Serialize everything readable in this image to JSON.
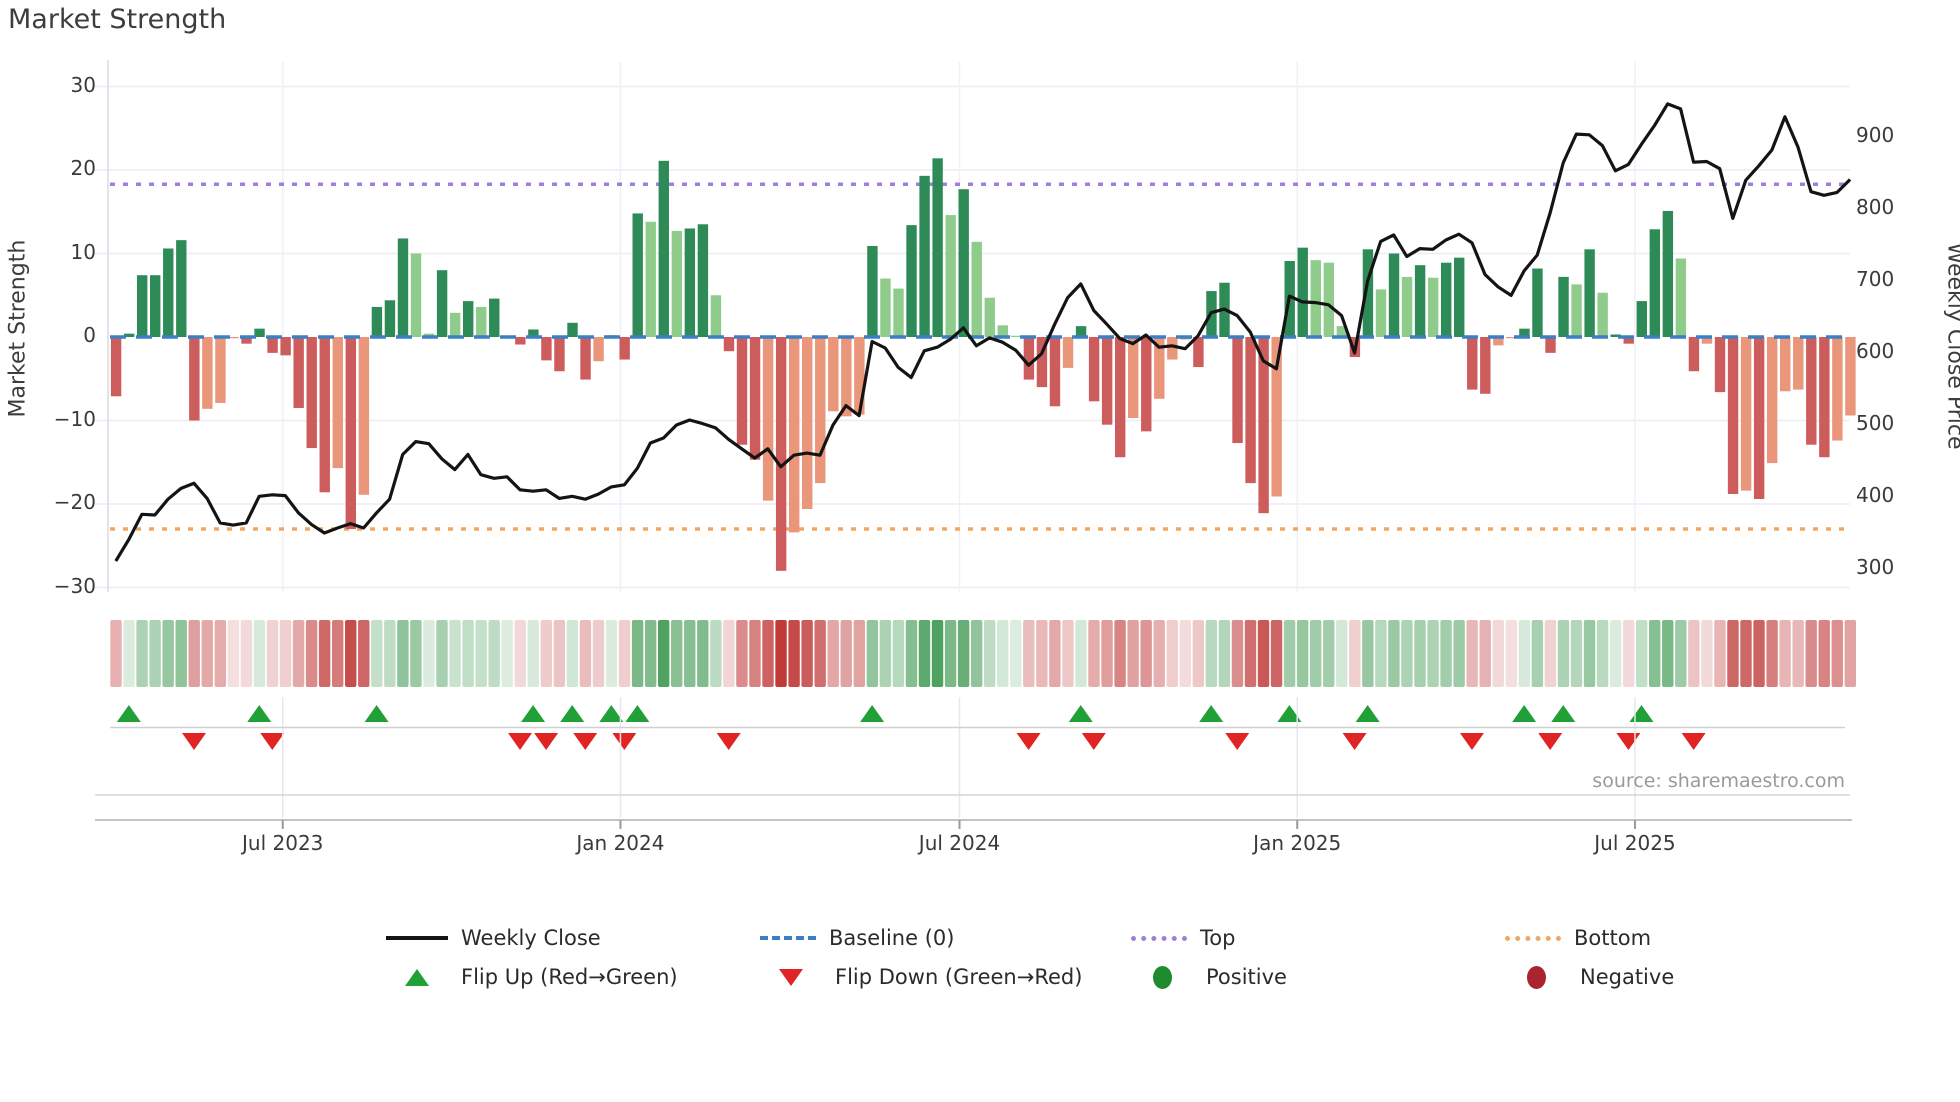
{
  "title": "Market Strength",
  "source": "source: sharemaestro.com",
  "y_left": {
    "label": "Market Strength",
    "ticks": [
      "30",
      "20",
      "10",
      "0",
      "−10",
      "−20",
      "−30"
    ],
    "tick_values": [
      30,
      20,
      10,
      0,
      -10,
      -20,
      -30
    ]
  },
  "y_right": {
    "label": "Weekly Close Price",
    "ticks": [
      "900",
      "800",
      "700",
      "600",
      "500",
      "400",
      "300"
    ],
    "tick_values": [
      900,
      800,
      700,
      600,
      500,
      400,
      300
    ]
  },
  "x_ticks": [
    {
      "label": "Jul 2023",
      "week": 12.8
    },
    {
      "label": "Jan 2024",
      "week": 38.7
    },
    {
      "label": "Jul 2024",
      "week": 64.7
    },
    {
      "label": "Jan 2025",
      "week": 90.6
    },
    {
      "label": "Jul 2025",
      "week": 116.5
    }
  ],
  "legend": {
    "weekly_close": "Weekly Close",
    "baseline": "Baseline (0)",
    "top": "Top",
    "bottom": "Bottom",
    "flip_up": "Flip Up (Red→Green)",
    "flip_down": "Flip Down (Green→Red)",
    "positive": "Positive",
    "negative": "Negative"
  },
  "chart_data": {
    "type": "bar",
    "title": "Market Strength",
    "ylabel_left": "Market Strength",
    "ylabel_right": "Weekly Close Price",
    "ylim_left": [
      -30,
      30
    ],
    "baseline": 0,
    "top_line": 18.3,
    "bottom_line": -23,
    "grid": true,
    "legend_position": "bottom",
    "weeks": 134,
    "series": [
      {
        "name": "Market Strength (weekly bars)",
        "type": "bar",
        "values": [
          -7.1,
          0.4,
          7.4,
          7.4,
          10.6,
          11.6,
          -10,
          -8.6,
          -7.9,
          -0.15,
          -0.8,
          1,
          -1.9,
          -2.2,
          -8.5,
          -13.3,
          -18.6,
          -15.7,
          -23,
          -18.9,
          3.6,
          4.4,
          11.8,
          10,
          0.4,
          8,
          2.9,
          4.3,
          3.6,
          4.6,
          0.15,
          -0.9,
          0.9,
          -2.8,
          -4.1,
          1.7,
          -5.1,
          -2.9,
          0.2,
          -2.7,
          14.8,
          13.8,
          21.1,
          12.7,
          13,
          13.5,
          5,
          -1.7,
          -12.9,
          -14.7,
          -19.6,
          -28,
          -23.4,
          -20.6,
          -17.5,
          -8.9,
          -9.5,
          -9.3,
          10.9,
          7,
          5.8,
          13.4,
          19.3,
          21.4,
          14.6,
          17.7,
          11.4,
          4.7,
          1.4,
          0.15,
          -5.1,
          -6,
          -8.3,
          -3.7,
          1.3,
          -7.7,
          -10.5,
          -14.4,
          -9.7,
          -11.3,
          -7.4,
          -2.7,
          -0.3,
          -3.6,
          5.5,
          6.5,
          -12.7,
          -17.5,
          -21.1,
          -19.1,
          9.1,
          10.7,
          9.2,
          8.9,
          1.3,
          -2.4,
          10.5,
          5.7,
          10,
          7.2,
          8.6,
          7.1,
          8.9,
          9.5,
          -6.3,
          -6.8,
          -1,
          -0.15,
          1,
          8.2,
          -1.9,
          7.2,
          6.3,
          10.5,
          5.3,
          0.3,
          -0.8,
          4.3,
          12.9,
          15.1,
          9.4,
          -4.1,
          -0.8,
          -6.6,
          -18.8,
          -18.4,
          -19.4,
          -15.1,
          -6.5,
          -6.3,
          -12.9,
          -14.4,
          -12.4,
          -9.4
        ],
        "bar_color_codes": [
          "dr",
          "dg",
          "dg",
          "dg",
          "dg",
          "dg",
          "dr",
          "lr",
          "lr",
          "lr",
          "dr",
          "dg",
          "dr",
          "dr",
          "dr",
          "dr",
          "dr",
          "lr",
          "dr",
          "lr",
          "dg",
          "dg",
          "dg",
          "lg",
          "lg",
          "dg",
          "lg",
          "dg",
          "lg",
          "dg",
          "lg",
          "dr",
          "dg",
          "dr",
          "dr",
          "dg",
          "dr",
          "lr",
          "dg",
          "dr",
          "dg",
          "lg",
          "dg",
          "lg",
          "dg",
          "dg",
          "lg",
          "dr",
          "dr",
          "dr",
          "lr",
          "dr",
          "lr",
          "lr",
          "lr",
          "lr",
          "lr",
          "lr",
          "dg",
          "lg",
          "lg",
          "dg",
          "dg",
          "dg",
          "lg",
          "dg",
          "lg",
          "lg",
          "lg",
          "lg",
          "dr",
          "dr",
          "dr",
          "lr",
          "dg",
          "dr",
          "dr",
          "dr",
          "lr",
          "dr",
          "lr",
          "lr",
          "lr",
          "dr",
          "dg",
          "dg",
          "dr",
          "dr",
          "dr",
          "lr",
          "dg",
          "dg",
          "lg",
          "lg",
          "lg",
          "dr",
          "dg",
          "lg",
          "dg",
          "lg",
          "dg",
          "lg",
          "dg",
          "dg",
          "dr",
          "dr",
          "lr",
          "lr",
          "dg",
          "dg",
          "dr",
          "dg",
          "lg",
          "dg",
          "lg",
          "dg",
          "dr",
          "dg",
          "dg",
          "dg",
          "lg",
          "dr",
          "lr",
          "dr",
          "dr",
          "lr",
          "dr",
          "lr",
          "lr",
          "lr",
          "dr",
          "dr",
          "lr",
          "lr"
        ]
      },
      {
        "name": "Weekly Close",
        "type": "line",
        "values": [
          311,
          341,
          376,
          375,
          397,
          412,
          419,
          398,
          364,
          361,
          364,
          401,
          403,
          402,
          378,
          362,
          350,
          357,
          363,
          357,
          378,
          397,
          459,
          477,
          474,
          453,
          438,
          459,
          431,
          426,
          428,
          410,
          408,
          410,
          398,
          401,
          397,
          404,
          414,
          417,
          440,
          475,
          482,
          500,
          507,
          502,
          496,
          480,
          467,
          454,
          467,
          442,
          458,
          461,
          458,
          500,
          527,
          513,
          616,
          607,
          580,
          566,
          603,
          608,
          619,
          635,
          610,
          621,
          615,
          604,
          583,
          599,
          640,
          677,
          696,
          659,
          640,
          620,
          613,
          625,
          608,
          610,
          606,
          624,
          656,
          661,
          652,
          629,
          589,
          578,
          679,
          671,
          670,
          667,
          652,
          600,
          700,
          755,
          764,
          734,
          745,
          744,
          757,
          765,
          753,
          709,
          692,
          680,
          714,
          736,
          795,
          864,
          904,
          903,
          888,
          853,
          862,
          890,
          916,
          946,
          939,
          865,
          866,
          856,
          787,
          840,
          860,
          882,
          928,
          886,
          824,
          819,
          823,
          841
        ]
      }
    ],
    "flip_up_weeks": [
      1,
      11,
      20,
      32,
      35,
      38,
      40,
      58,
      74,
      84,
      90,
      96,
      108,
      111,
      117
    ],
    "flip_down_weeks": [
      6,
      12,
      31,
      33,
      36,
      39,
      47,
      70,
      75,
      86,
      95,
      104,
      110,
      116,
      121
    ],
    "colors": {
      "bar_dark_green": "#2e8b57",
      "bar_light_green": "#8fcc8b",
      "bar_dark_red": "#cd5c5c",
      "bar_light_red": "#e9967a",
      "baseline_blue": "#3b7fc4",
      "top_purple": "#a07fd8",
      "bottom_orange": "#f0a763",
      "price_line": "#141414",
      "flip_up_green": "#21a038",
      "flip_down_red": "#e02424",
      "heat_green": "#288c3c",
      "heat_red": "#bc3230"
    }
  }
}
